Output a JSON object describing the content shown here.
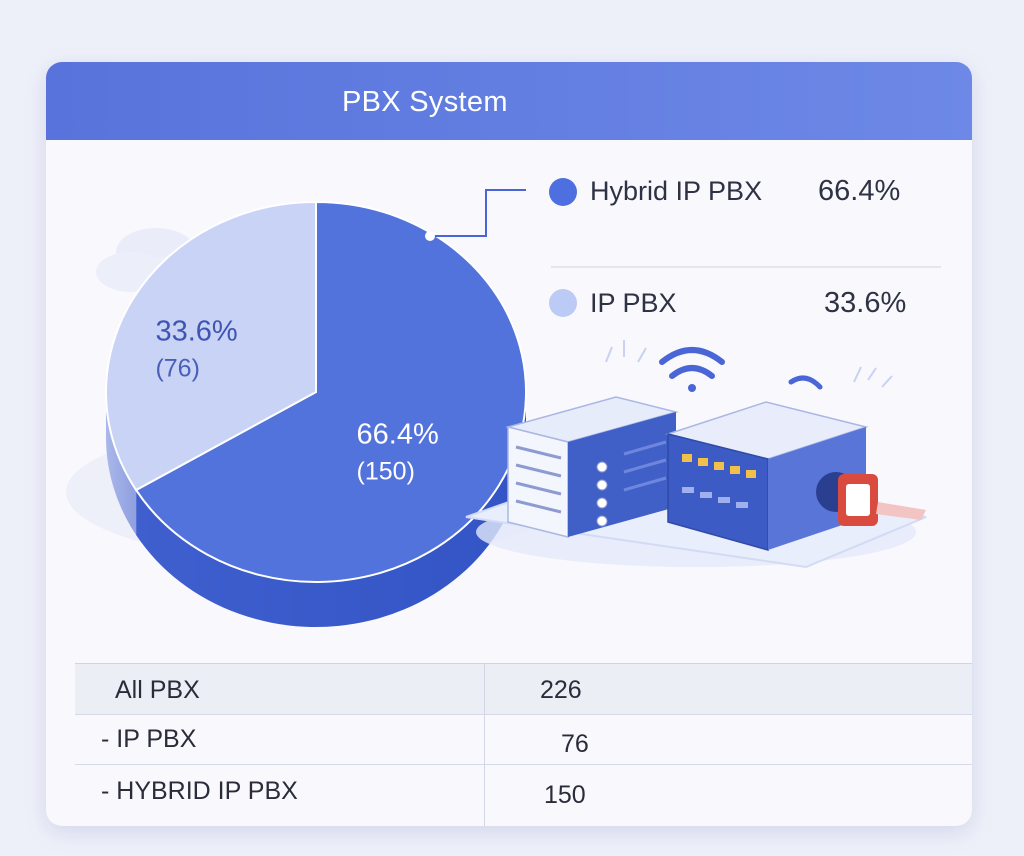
{
  "header": {
    "title": "PBX System"
  },
  "chart_data": {
    "type": "pie",
    "title": "PBX System",
    "slices": [
      {
        "name": "Hybrid IP PBX",
        "value": 150,
        "percent_label": "66.4%",
        "count_label": "(150)",
        "color": "#5272dc"
      },
      {
        "name": "IP PBX",
        "value": 76,
        "percent_label": "33.6%",
        "count_label": "(76)",
        "color": "#c9d3f5"
      }
    ],
    "legend": {
      "placement": "right",
      "items": [
        {
          "label": "Hybrid IP PBX",
          "value": "66.4%",
          "color": "#4d6fe0"
        },
        {
          "label": "IP PBX",
          "value": "33.6%",
          "color": "#bccaf6"
        }
      ]
    }
  },
  "table": {
    "rows": [
      {
        "label": "All PBX",
        "value": "226"
      },
      {
        "label": "- IP PBX",
        "value": "76"
      },
      {
        "label": "- HYBRID IP PBX",
        "value": "150"
      }
    ]
  },
  "illustration": {
    "icons": [
      "server-rack-icon",
      "network-switch-icon",
      "wifi-icon",
      "cloud-icon"
    ]
  }
}
